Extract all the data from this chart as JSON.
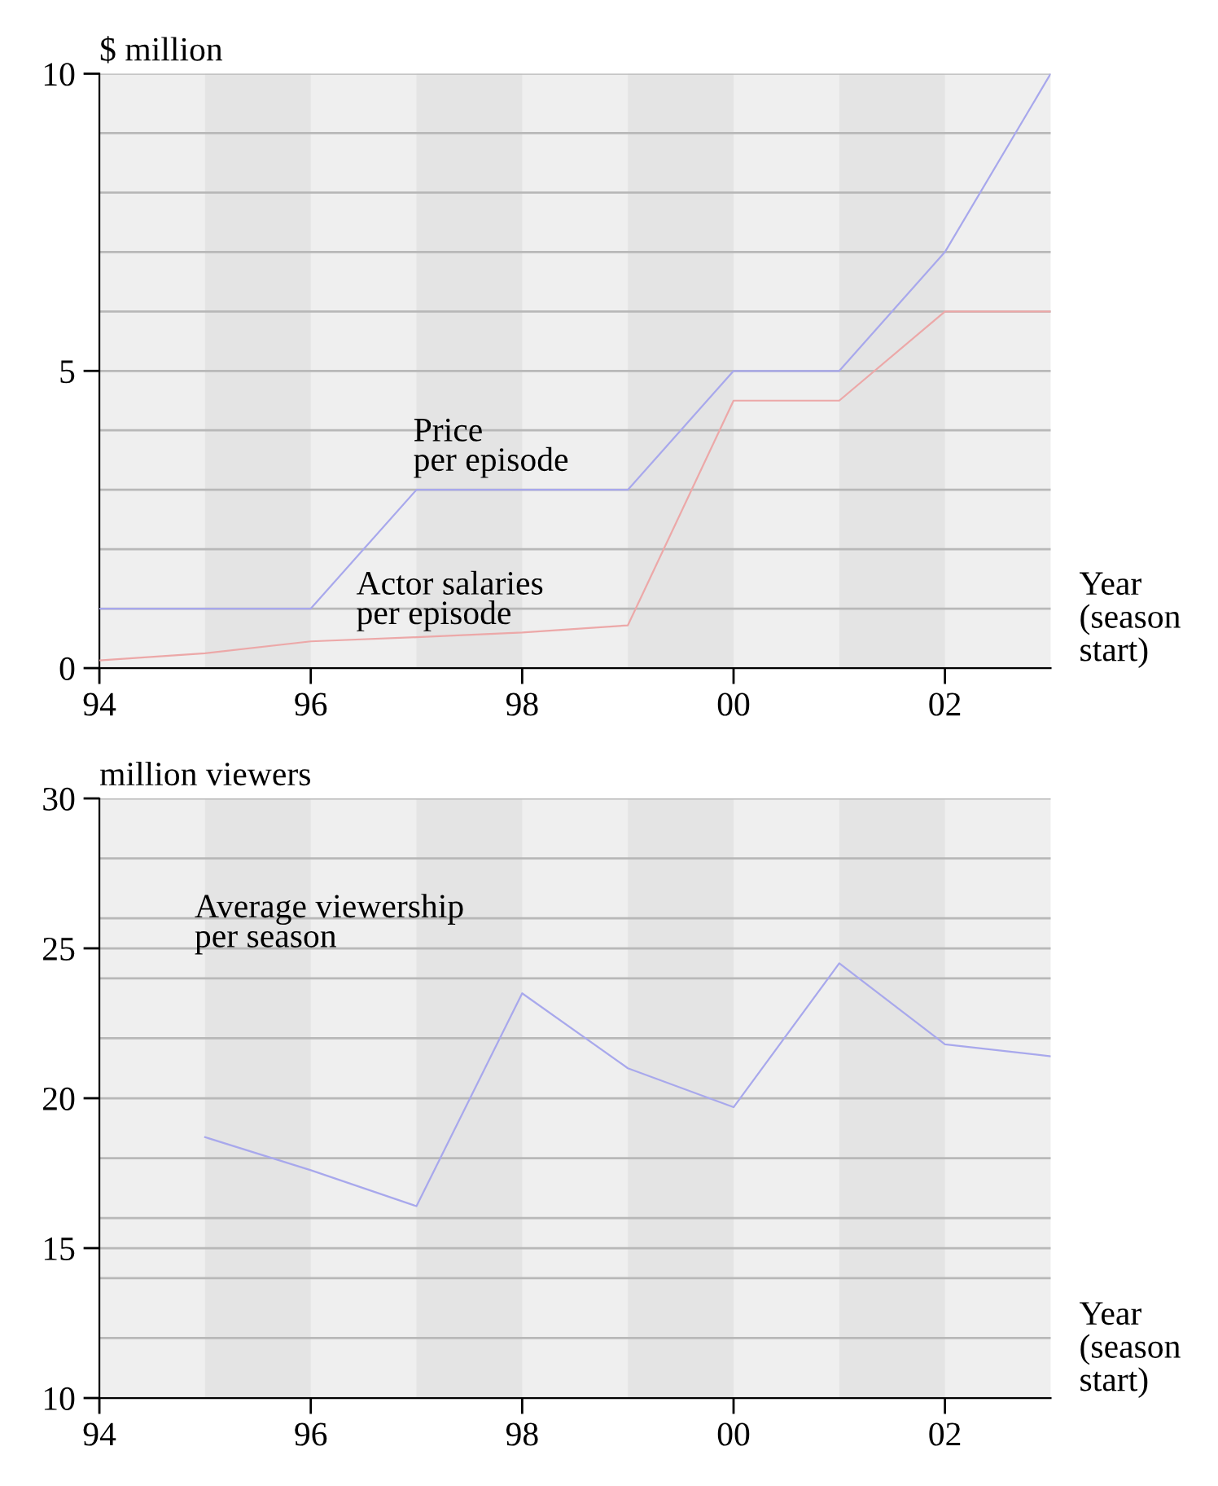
{
  "chart_data": [
    {
      "type": "line",
      "ylabel": "$ million",
      "xlabel": "Year\n(season\nstart)",
      "x": [
        1994,
        1995,
        1996,
        1997,
        1998,
        1999,
        2000,
        2001,
        2002,
        2003
      ],
      "series": [
        {
          "name": "Price\nper episode",
          "color": "#a8a8ec",
          "values": [
            1,
            1,
            1,
            3,
            3,
            3,
            5,
            5,
            7,
            10
          ]
        },
        {
          "name": "Actor salaries\nper episode",
          "color": "#eca8a8",
          "values": [
            0.13,
            0.25,
            0.45,
            0.52,
            0.6,
            0.72,
            4.5,
            4.5,
            6,
            6
          ]
        }
      ],
      "xlim": [
        1994,
        2003
      ],
      "ylim": [
        0,
        10
      ],
      "xticks": [
        {
          "value": 1994,
          "label": "94"
        },
        {
          "value": 1996,
          "label": "96"
        },
        {
          "value": 1998,
          "label": "98"
        },
        {
          "value": 2000,
          "label": "00"
        },
        {
          "value": 2002,
          "label": "02"
        }
      ],
      "yticks": [
        0,
        {
          "value": 1,
          "label": null
        },
        {
          "value": 2,
          "label": null
        },
        {
          "value": 3,
          "label": null
        },
        {
          "value": 4,
          "label": null
        },
        5,
        {
          "value": 6,
          "label": null
        },
        {
          "value": 7,
          "label": null
        },
        {
          "value": 8,
          "label": null
        },
        {
          "value": 9,
          "label": null
        },
        10
      ],
      "bands": [
        {
          "axis": "x",
          "from": 1995,
          "to": 1996,
          "color": "#e4e4e4"
        },
        {
          "axis": "x",
          "from": 1997,
          "to": 1998,
          "color": "#e4e4e4"
        },
        {
          "axis": "x",
          "from": 1999,
          "to": 2000,
          "color": "#e4e4e4"
        },
        {
          "axis": "x",
          "from": 2001,
          "to": 2002,
          "color": "#e4e4e4"
        }
      ],
      "grid": "y",
      "legend": false
    },
    {
      "type": "line",
      "ylabel": "million viewers",
      "xlabel": "Year\n(season\nstart)",
      "x": [
        1995,
        1996,
        1997,
        1998,
        1999,
        2000,
        2001,
        2002,
        2003
      ],
      "series": [
        {
          "name": "Average viewership\nper season",
          "color": "#a8a8ec",
          "values": [
            18.7,
            17.6,
            16.4,
            23.5,
            21.0,
            19.7,
            24.5,
            21.8,
            21.4
          ]
        }
      ],
      "xlim": [
        1994,
        2003
      ],
      "ylim": [
        10,
        30
      ],
      "xticks": [
        {
          "value": 1994,
          "label": "94"
        },
        {
          "value": 1996,
          "label": "96"
        },
        {
          "value": 1998,
          "label": "98"
        },
        {
          "value": 2000,
          "label": "00"
        },
        {
          "value": 2002,
          "label": "02"
        }
      ],
      "yticks": [
        10,
        {
          "value": 12,
          "label": null
        },
        {
          "value": 14,
          "label": null
        },
        15,
        {
          "value": 16,
          "label": null
        },
        {
          "value": 18,
          "label": null
        },
        20,
        {
          "value": 22,
          "label": null
        },
        {
          "value": 24,
          "label": null
        },
        25,
        {
          "value": 26,
          "label": null
        },
        {
          "value": 28,
          "label": null
        },
        30
      ],
      "bands": [
        {
          "axis": "x",
          "from": 1995,
          "to": 1996,
          "color": "#e4e4e4"
        },
        {
          "axis": "x",
          "from": 1997,
          "to": 1998,
          "color": "#e4e4e4"
        },
        {
          "axis": "x",
          "from": 1999,
          "to": 2000,
          "color": "#e4e4e4"
        },
        {
          "axis": "x",
          "from": 2001,
          "to": 2002,
          "color": "#e4e4e4"
        }
      ],
      "grid": "y",
      "legend": false
    }
  ]
}
